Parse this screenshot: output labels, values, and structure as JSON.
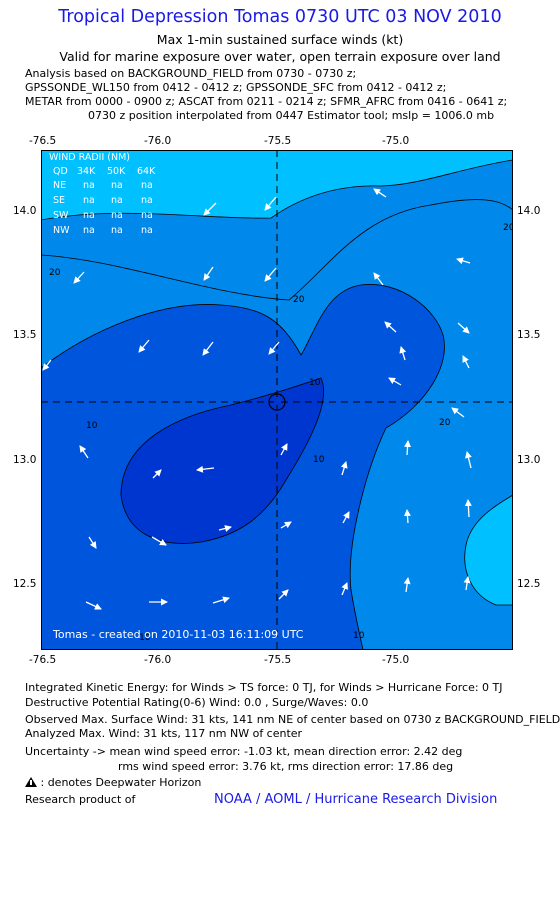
{
  "header": {
    "title": "Tropical Depression Tomas 0730 UTC 03 NOV 2010",
    "subtitle1": "Max 1-min sustained surface winds (kt)",
    "subtitle2": "Valid for marine exposure over water, open terrain exposure over land",
    "analysis_lines": [
      "Analysis based on BACKGROUND_FIELD from 0730 - 0730 z;",
      "GPSSONDE_WL150 from 0412 - 0412 z; GPSSONDE_SFC from 0412 - 0412 z;",
      "METAR from 0000 - 0900 z; ASCAT from 0211 - 0214 z; SFMR_AFRC from 0416 - 0641 z;",
      "0730 z position interpolated from 0447 Estimator tool; mslp = 1006.0 mb"
    ]
  },
  "map": {
    "lon_ticks": [
      "-76.5",
      "-76.0",
      "-75.5",
      "-75.0"
    ],
    "lat_ticks": [
      "14.0",
      "13.5",
      "13.0",
      "12.5"
    ],
    "contour_labels": [
      "20",
      "20",
      "20",
      "20",
      "10",
      "10",
      "10",
      "10",
      "10"
    ],
    "colors": {
      "outer": "#00c0ff",
      "band20": "#0088ea",
      "band10": "#0055dd",
      "inner": "#0036d0",
      "frame": "#000000"
    },
    "wind_radii": {
      "title": "WIND RADII (NM)",
      "header": [
        "QD",
        "34K",
        "50K",
        "64K"
      ],
      "rows": [
        [
          "NE",
          "na",
          "na",
          "na"
        ],
        [
          "SE",
          "na",
          "na",
          "na"
        ],
        [
          "SW",
          "na",
          "na",
          "na"
        ],
        [
          "NW",
          "na",
          "na",
          "na"
        ]
      ]
    },
    "credit": "Tomas - created on 2010-11-03 16:11:09 UTC",
    "arrow_icon": "wind-vector-icon",
    "center_icon": "storm-center-icon"
  },
  "footer": {
    "ike": "Integrated Kinetic Energy:  for Winds > TS force: 0 TJ,  for Winds > Hurricane Force: 0 TJ",
    "dpr": "Destructive Potential Rating(0-6)   Wind: 0.0 , Surge/Waves: 0.0",
    "observed": "Observed Max. Surface Wind: 31 kts, 141 nm NE of center based on 0730 z BACKGROUND_FIELD",
    "analyzed": "Analyzed Max. Wind: 31 kts, 117 nm NW of center",
    "uncertainty1": "Uncertainty -> mean wind speed error:  -1.03 kt,   mean direction error: 2.42 deg",
    "uncertainty2": "rms wind speed error: 3.76 kt,   rms direction error: 17.86 deg",
    "deepwater": ": denotes Deepwater Horizon",
    "research": "Research product of",
    "aoml": "NOAA / AOML / Hurricane Research Division"
  }
}
